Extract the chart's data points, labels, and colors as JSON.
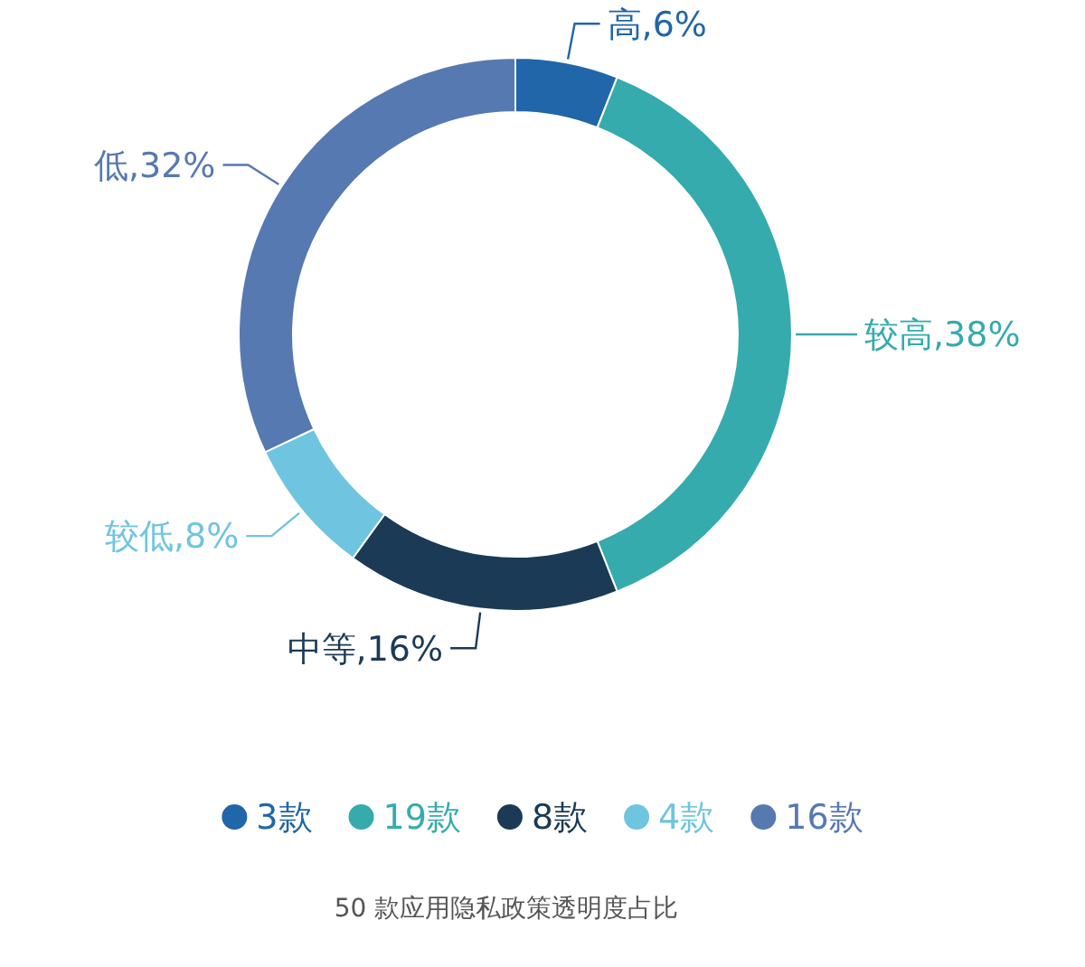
{
  "chart_data": {
    "type": "donut",
    "categories": [
      "3款",
      "19款",
      "8款",
      "4款",
      "16款"
    ],
    "values": [
      6,
      38,
      16,
      8,
      32
    ],
    "colors": [
      "#2166a8",
      "#35abad",
      "#1b3a56",
      "#6fc5df",
      "#5679b1"
    ],
    "value_labels": [
      "高,6%",
      "较高,38%",
      "中等,16%",
      "较低,8%",
      "低,32%"
    ],
    "legend": "bottom",
    "annotations": [
      "50 款应用隐私政策透明度占比"
    ]
  }
}
